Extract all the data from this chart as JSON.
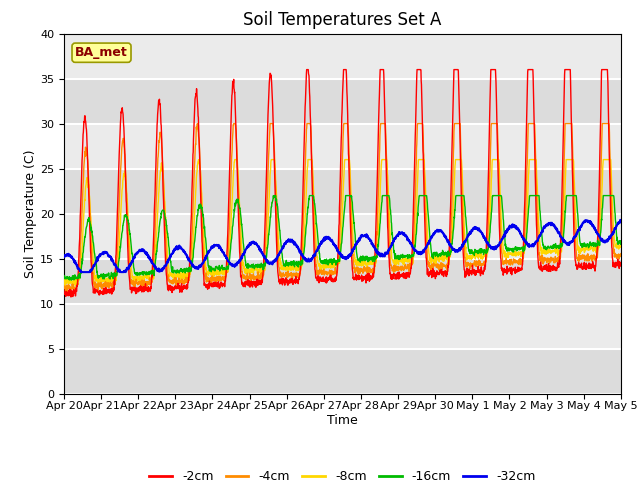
{
  "title": "Soil Temperatures Set A",
  "xlabel": "Time",
  "ylabel": "Soil Temperature (C)",
  "ylim": [
    0,
    40
  ],
  "yticks": [
    0,
    5,
    10,
    15,
    20,
    25,
    30,
    35,
    40
  ],
  "xlabels": [
    "Apr 20",
    "Apr 21",
    "Apr 22",
    "Apr 23",
    "Apr 24",
    "Apr 25",
    "Apr 26",
    "Apr 27",
    "Apr 28",
    "Apr 29",
    "Apr 30",
    "May 1",
    "May 2",
    "May 3",
    "May 4",
    "May 5"
  ],
  "annotation_text": "BA_met",
  "annotation_color": "#8B0000",
  "annotation_bg": "#FFFF99",
  "series_colors": [
    "#FF0000",
    "#FF8C00",
    "#FFD700",
    "#00BB00",
    "#0000EE"
  ],
  "series_labels": [
    "-2cm",
    "-4cm",
    "-8cm",
    "-16cm",
    "-32cm"
  ],
  "plot_bg": "#E0E0E0",
  "fig_bg": "#FFFFFF",
  "title_fontsize": 12,
  "axis_fontsize": 8,
  "label_fontsize": 9
}
